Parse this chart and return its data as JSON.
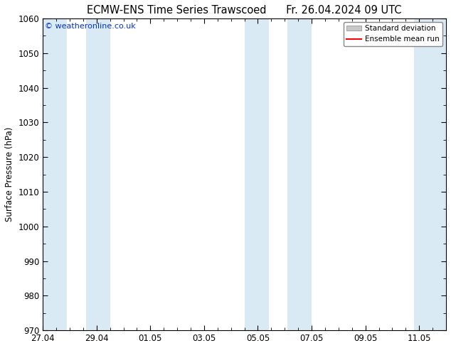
{
  "title": "ECMW-ENS Time Series Trawscoed      Fr. 26.04.2024 09 UTC",
  "ylabel": "Surface Pressure (hPa)",
  "ylim": [
    970,
    1060
  ],
  "yticks": [
    970,
    980,
    990,
    1000,
    1010,
    1020,
    1030,
    1040,
    1050,
    1060
  ],
  "xlim": [
    0,
    15
  ],
  "x_tick_labels": [
    "27.04",
    "29.04",
    "01.05",
    "03.05",
    "05.05",
    "07.05",
    "09.05",
    "11.05"
  ],
  "x_tick_positions": [
    0,
    2,
    4,
    6,
    8,
    10,
    12,
    14
  ],
  "shaded_bands": [
    {
      "x_start": 0.0,
      "x_end": 0.9
    },
    {
      "x_start": 1.6,
      "x_end": 2.5
    },
    {
      "x_start": 7.5,
      "x_end": 8.4
    },
    {
      "x_start": 9.1,
      "x_end": 10.0
    },
    {
      "x_start": 13.8,
      "x_end": 15.0
    }
  ],
  "shade_color": "#daeaf5",
  "background_color": "#ffffff",
  "watermark": "© weatheronline.co.uk",
  "watermark_color": "#0033cc",
  "legend_std_color": "#c8c8c8",
  "legend_mean_color": "#ff0000",
  "title_fontsize": 10.5,
  "tick_fontsize": 8.5,
  "ylabel_fontsize": 8.5,
  "figsize": [
    6.34,
    4.9
  ],
  "dpi": 100
}
